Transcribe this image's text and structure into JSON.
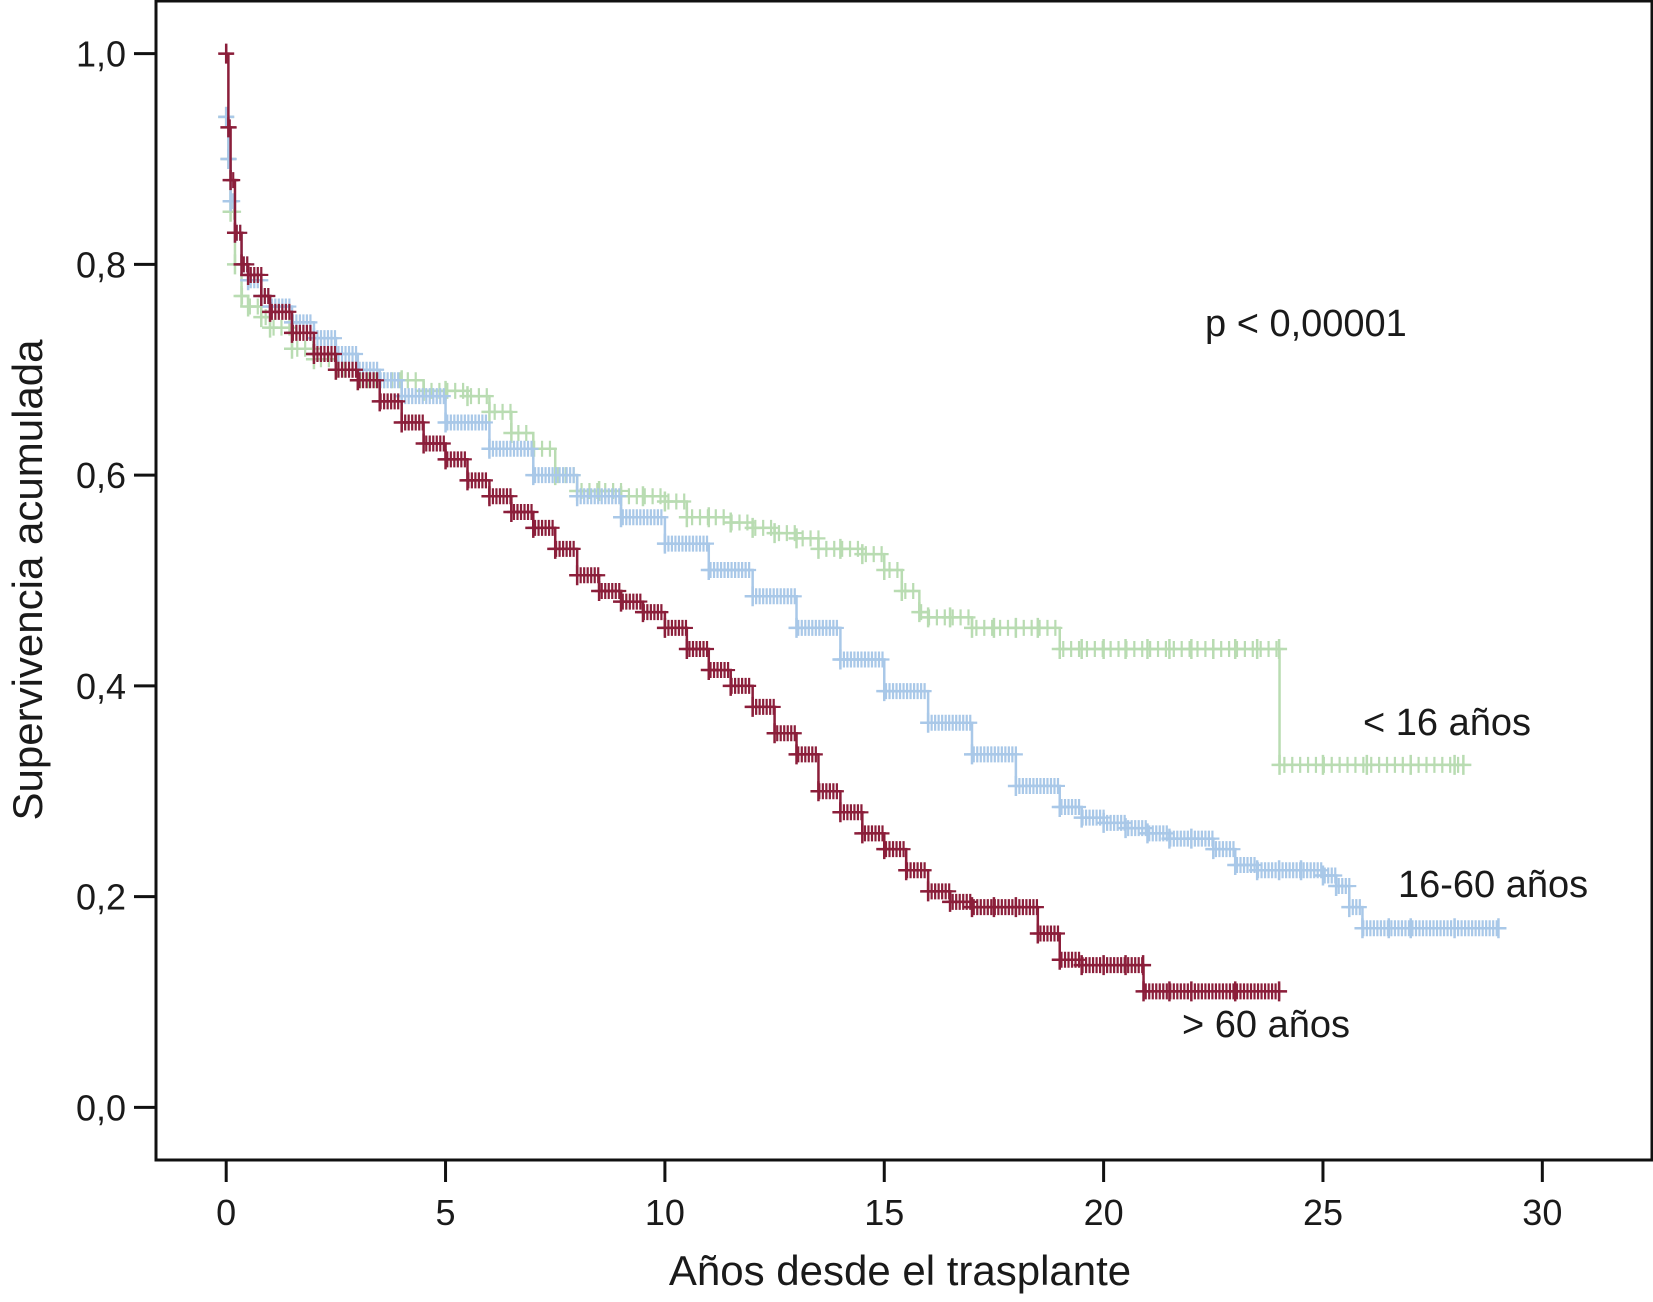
{
  "chart_data": {
    "type": "line",
    "title": "",
    "xlabel": "Años desde el trasplante",
    "ylabel": "Supervivencia acumulada",
    "xlim": [
      -1.6,
      32.5
    ],
    "ylim": [
      -0.05,
      1.05
    ],
    "xticks": [
      {
        "value": 0,
        "label": "0"
      },
      {
        "value": 5,
        "label": "5"
      },
      {
        "value": 10,
        "label": "10"
      },
      {
        "value": 15,
        "label": "15"
      },
      {
        "value": 20,
        "label": "20"
      },
      {
        "value": 25,
        "label": "25"
      },
      {
        "value": 30,
        "label": "30"
      }
    ],
    "yticks": [
      {
        "value": 0.0,
        "label": "0,0"
      },
      {
        "value": 0.2,
        "label": "0,2"
      },
      {
        "value": 0.4,
        "label": "0,4"
      },
      {
        "value": 0.6,
        "label": "0,6"
      },
      {
        "value": 0.8,
        "label": "0,8"
      },
      {
        "value": 1.0,
        "label": "1,0"
      }
    ],
    "grid": false,
    "legend": "none",
    "annotation": "p < 0,00001",
    "series": [
      {
        "name": "< 16 años",
        "color": "#b9dcb2",
        "x": [
          0,
          0.05,
          0.1,
          0.2,
          0.35,
          0.5,
          0.8,
          1.0,
          1.5,
          2.0,
          2.5,
          3.0,
          3.5,
          4.0,
          4.5,
          5.0,
          5.5,
          6.0,
          6.5,
          7.0,
          7.5,
          8.0,
          8.5,
          9.0,
          9.5,
          10.0,
          10.5,
          11.0,
          11.5,
          12.0,
          12.5,
          13.0,
          13.5,
          14.0,
          14.5,
          15.0,
          15.4,
          15.8,
          16.0,
          16.5,
          17.0,
          17.5,
          18.0,
          18.5,
          19.0,
          19.5,
          20.0,
          20.5,
          21.0,
          21.5,
          22.0,
          22.5,
          23.0,
          23.5,
          24.0,
          24.01,
          25.0,
          26.0,
          27.0,
          28.0,
          28.2
        ],
        "y": [
          0.94,
          0.9,
          0.85,
          0.8,
          0.77,
          0.76,
          0.75,
          0.74,
          0.72,
          0.71,
          0.7,
          0.69,
          0.69,
          0.69,
          0.68,
          0.68,
          0.675,
          0.66,
          0.64,
          0.625,
          0.6,
          0.585,
          0.585,
          0.58,
          0.58,
          0.575,
          0.56,
          0.56,
          0.555,
          0.55,
          0.545,
          0.54,
          0.53,
          0.53,
          0.525,
          0.51,
          0.49,
          0.47,
          0.465,
          0.465,
          0.455,
          0.455,
          0.455,
          0.455,
          0.435,
          0.435,
          0.435,
          0.435,
          0.435,
          0.435,
          0.435,
          0.435,
          0.435,
          0.435,
          0.435,
          0.325,
          0.325,
          0.325,
          0.325,
          0.325,
          0.325
        ]
      },
      {
        "name": "16-60 años",
        "color": "#a9c8e8",
        "x": [
          0,
          0.05,
          0.1,
          0.2,
          0.35,
          0.5,
          0.8,
          1.0,
          1.5,
          2.0,
          2.5,
          3.0,
          3.5,
          4.0,
          5.0,
          6.0,
          7.0,
          8.0,
          9.0,
          10.0,
          11.0,
          12.0,
          13.0,
          14.0,
          15.0,
          16.0,
          17.0,
          18.0,
          19.0,
          19.5,
          20.0,
          20.5,
          21.0,
          21.5,
          22.0,
          22.5,
          23.0,
          23.5,
          24.0,
          24.5,
          25.0,
          25.3,
          25.6,
          25.9,
          26.5,
          27.0,
          28.0,
          29.0
        ],
        "y": [
          0.94,
          0.9,
          0.86,
          0.83,
          0.8,
          0.785,
          0.77,
          0.76,
          0.745,
          0.73,
          0.715,
          0.7,
          0.69,
          0.675,
          0.65,
          0.625,
          0.6,
          0.58,
          0.56,
          0.535,
          0.51,
          0.485,
          0.455,
          0.425,
          0.395,
          0.365,
          0.335,
          0.305,
          0.285,
          0.275,
          0.27,
          0.265,
          0.26,
          0.255,
          0.255,
          0.245,
          0.23,
          0.225,
          0.225,
          0.225,
          0.22,
          0.21,
          0.19,
          0.17,
          0.17,
          0.17,
          0.17,
          0.17
        ]
      },
      {
        "name": "> 60 años",
        "color": "#8b1e3a",
        "x": [
          0,
          0.05,
          0.1,
          0.2,
          0.35,
          0.5,
          0.8,
          1.0,
          1.5,
          2.0,
          2.5,
          3.0,
          3.5,
          4.0,
          4.5,
          5.0,
          5.5,
          6.0,
          6.5,
          7.0,
          7.5,
          8.0,
          8.5,
          9.0,
          9.5,
          10.0,
          10.5,
          11.0,
          11.5,
          12.0,
          12.5,
          13.0,
          13.5,
          14.0,
          14.5,
          15.0,
          15.5,
          16.0,
          16.5,
          17.0,
          17.5,
          18.0,
          18.5,
          19.0,
          19.5,
          20.0,
          20.5,
          20.9,
          20.91,
          21.5,
          22.0,
          23.0,
          24.0
        ],
        "y": [
          1.0,
          0.93,
          0.88,
          0.83,
          0.8,
          0.79,
          0.77,
          0.755,
          0.735,
          0.715,
          0.7,
          0.69,
          0.67,
          0.65,
          0.63,
          0.615,
          0.595,
          0.58,
          0.565,
          0.55,
          0.53,
          0.505,
          0.49,
          0.48,
          0.47,
          0.455,
          0.435,
          0.415,
          0.4,
          0.38,
          0.355,
          0.335,
          0.3,
          0.28,
          0.26,
          0.245,
          0.225,
          0.205,
          0.195,
          0.19,
          0.19,
          0.19,
          0.165,
          0.14,
          0.135,
          0.135,
          0.135,
          0.135,
          0.11,
          0.11,
          0.11,
          0.11,
          0.11
        ]
      }
    ]
  }
}
